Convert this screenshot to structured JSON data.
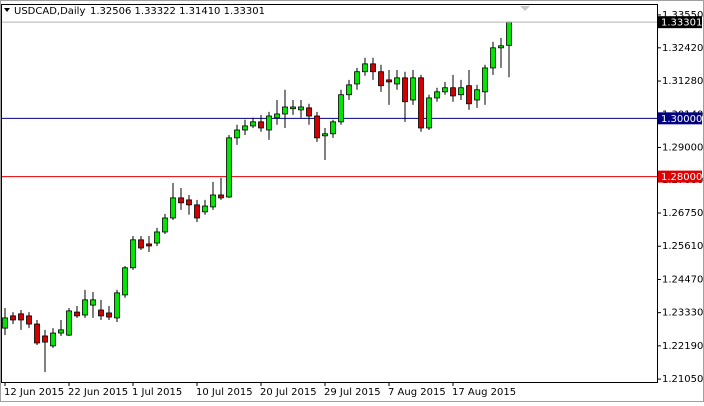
{
  "chart_data": {
    "type": "candlestick",
    "title": "USDCAD,Daily",
    "ohlc_label": "1.32506 1.33322 1.31410 1.33301",
    "categories": [
      "12 Jun 2015",
      null,
      null,
      null,
      null,
      null,
      null,
      null,
      "22 Jun 2015",
      null,
      null,
      null,
      null,
      null,
      null,
      null,
      "1 Jul 2015",
      null,
      null,
      null,
      null,
      null,
      null,
      null,
      "10 Jul 2015",
      null,
      null,
      null,
      null,
      null,
      null,
      null,
      "20 Jul 2015",
      null,
      null,
      null,
      null,
      null,
      null,
      null,
      "29 Jul 2015",
      null,
      null,
      null,
      null,
      null,
      null,
      null,
      "7 Aug 2015",
      null,
      null,
      null,
      null,
      null,
      null,
      null,
      "17 Aug 2015",
      null,
      null,
      null,
      null,
      null,
      null,
      null
    ],
    "open": [
      1.228,
      1.2322,
      1.2329,
      1.2322,
      1.2294,
      1.2253,
      1.2219,
      1.2263,
      1.2256,
      1.2335,
      1.2325,
      1.2359,
      1.2342,
      1.2332,
      1.2315,
      1.2394,
      1.2487,
      1.2583,
      1.2569,
      1.2572,
      1.261,
      1.2658,
      1.2727,
      1.272,
      1.2703,
      1.2679,
      1.2696,
      1.2737,
      1.273,
      1.2933,
      1.296,
      1.2974,
      1.2988,
      1.296,
      1.3002,
      1.3015,
      1.3033,
      1.3029,
      1.3036,
      1.3008,
      1.294,
      1.2947,
      1.2988,
      1.3081,
      1.3118,
      1.316,
      1.3187,
      1.316,
      1.3132,
      1.3118,
      1.3139,
      1.3063,
      1.3139,
      1.2967,
      1.307,
      1.3091,
      1.3105,
      1.3081,
      1.3112,
      1.3063,
      1.3091,
      1.3173,
      1.3242,
      1.32506
    ],
    "high": [
      1.2349,
      1.2335,
      1.2342,
      1.2335,
      1.2308,
      1.2274,
      1.228,
      1.2308,
      1.2349,
      1.2356,
      1.2411,
      1.2404,
      1.2377,
      1.2356,
      1.2411,
      1.2493,
      1.2596,
      1.2596,
      1.2596,
      1.2624,
      1.2672,
      1.2778,
      1.2761,
      1.2737,
      1.272,
      1.272,
      1.2782,
      1.2796,
      1.2943,
      1.2978,
      1.2995,
      1.3002,
      1.3012,
      1.3022,
      1.3063,
      1.3098,
      1.3063,
      1.3063,
      1.305,
      1.3022,
      1.2967,
      1.2995,
      1.3098,
      1.3132,
      1.3173,
      1.3208,
      1.3208,
      1.3184,
      1.3166,
      1.3166,
      1.316,
      1.3166,
      1.3149,
      1.3081,
      1.3105,
      1.3125,
      1.3149,
      1.3132,
      1.3166,
      1.3115,
      1.3184,
      1.3263,
      1.3276,
      1.33322
    ],
    "low": [
      1.2256,
      1.2294,
      1.2274,
      1.228,
      1.2222,
      1.2129,
      1.2212,
      1.2253,
      1.2253,
      1.2315,
      1.2315,
      1.2315,
      1.2308,
      1.2308,
      1.2301,
      1.2384,
      1.248,
      1.2548,
      1.2541,
      1.2562,
      1.2603,
      1.2651,
      1.2686,
      1.2669,
      1.2644,
      1.2669,
      1.2686,
      1.272,
      1.2727,
      1.2909,
      1.2943,
      1.2967,
      1.2954,
      1.2926,
      1.2978,
      1.2967,
      1.3012,
      1.3002,
      1.2978,
      1.2919,
      1.2857,
      1.2933,
      1.2978,
      1.3063,
      1.3098,
      1.3146,
      1.3132,
      1.3091,
      1.3046,
      1.3098,
      1.2988,
      1.3046,
      1.2954,
      1.296,
      1.3057,
      1.3081,
      1.3057,
      1.3063,
      1.3029,
      1.3036,
      1.3046,
      1.3149,
      1.3173,
      1.3141
    ],
    "close": [
      1.2315,
      1.2308,
      1.2308,
      1.2294,
      1.2229,
      1.2232,
      1.2263,
      1.2274,
      1.2339,
      1.2322,
      1.2377,
      1.2377,
      1.2322,
      1.2318,
      1.2401,
      1.2487,
      1.2583,
      1.2555,
      1.2562,
      1.261,
      1.2658,
      1.2727,
      1.271,
      1.2703,
      1.2658,
      1.2699,
      1.2737,
      1.2727,
      1.2933,
      1.296,
      1.2974,
      1.2988,
      1.2967,
      1.3008,
      1.3015,
      1.3039,
      1.3039,
      1.3039,
      1.3008,
      1.2933,
      1.2947,
      1.2988,
      1.3081,
      1.3115,
      1.316,
      1.3187,
      1.316,
      1.3112,
      1.3125,
      1.3139,
      1.3057,
      1.3139,
      1.2967,
      1.307,
      1.3091,
      1.3105,
      1.3077,
      1.3105,
      1.305,
      1.3098,
      1.3173,
      1.3242,
      1.3249,
      1.33301
    ],
    "up_color": "#00e600",
    "down_color": "#d40000",
    "ylim": [
      1.2095,
      1.3389
    ],
    "yticks": [
      {
        "value": 1.3355,
        "label": "1.33550"
      },
      {
        "value": 1.3242,
        "label": "1.32420"
      },
      {
        "value": 1.3128,
        "label": "1.31280"
      },
      {
        "value": 1.3014,
        "label": "1.30140"
      },
      {
        "value": 1.29,
        "label": "1.29000"
      },
      {
        "value": 1.2788,
        "label": "1.27880"
      },
      {
        "value": 1.2675,
        "label": "1.26750"
      },
      {
        "value": 1.2561,
        "label": "1.25610"
      },
      {
        "value": 1.2447,
        "label": "1.24470"
      },
      {
        "value": 1.2333,
        "label": "1.23330"
      },
      {
        "value": 1.2219,
        "label": "1.22190"
      },
      {
        "value": 1.2105,
        "label": "1.21050"
      }
    ],
    "hlines": [
      {
        "value": 1.3,
        "label": "1.30000",
        "color": "#000080"
      },
      {
        "value": 1.28,
        "label": "1.28000",
        "color": "#e00000"
      }
    ],
    "last_price": {
      "value": 1.33301,
      "label": "1.33301",
      "color": "#000000"
    }
  }
}
